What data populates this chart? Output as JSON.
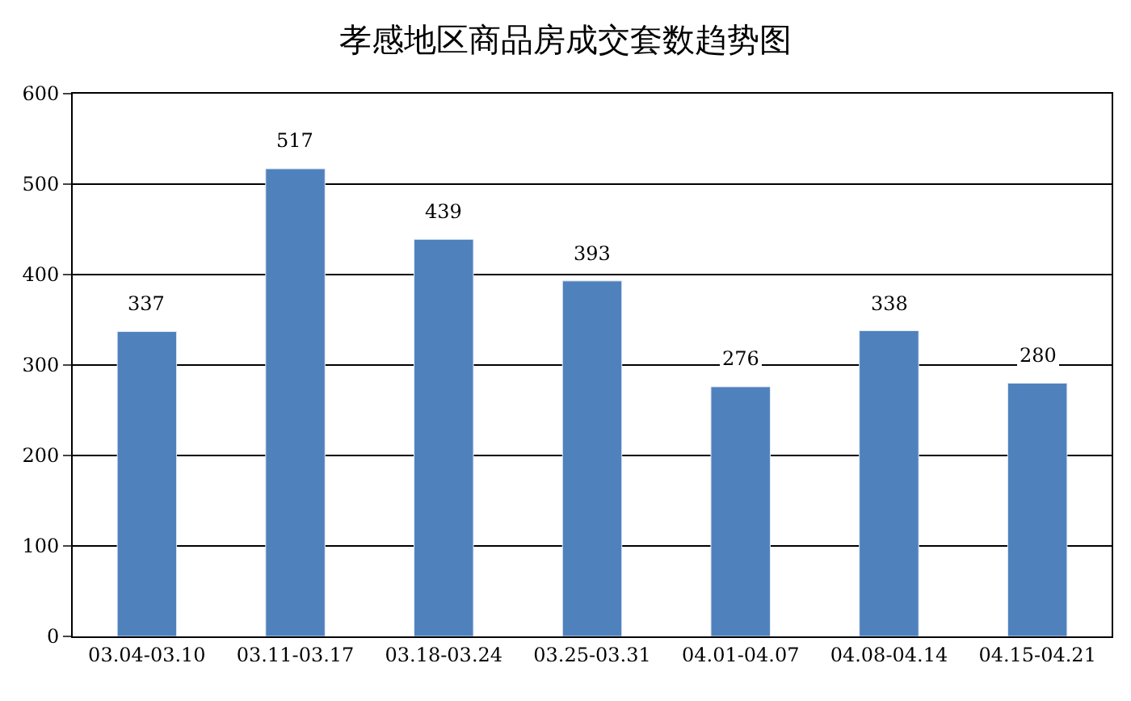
{
  "chart_data": {
    "type": "bar",
    "title": "孝感地区商品房成交套数趋势图",
    "categories": [
      "03.04-03.10",
      "03.11-03.17",
      "03.18-03.24",
      "03.25-03.31",
      "04.01-04.07",
      "04.08-04.14",
      "04.15-04.21"
    ],
    "values": [
      337,
      517,
      439,
      393,
      276,
      338,
      280
    ],
    "color": "#4f81bd",
    "ylim": [
      0,
      600
    ],
    "yticks": [
      0,
      100,
      200,
      300,
      400,
      500,
      600
    ],
    "grid": "y",
    "data_labels": true
  }
}
